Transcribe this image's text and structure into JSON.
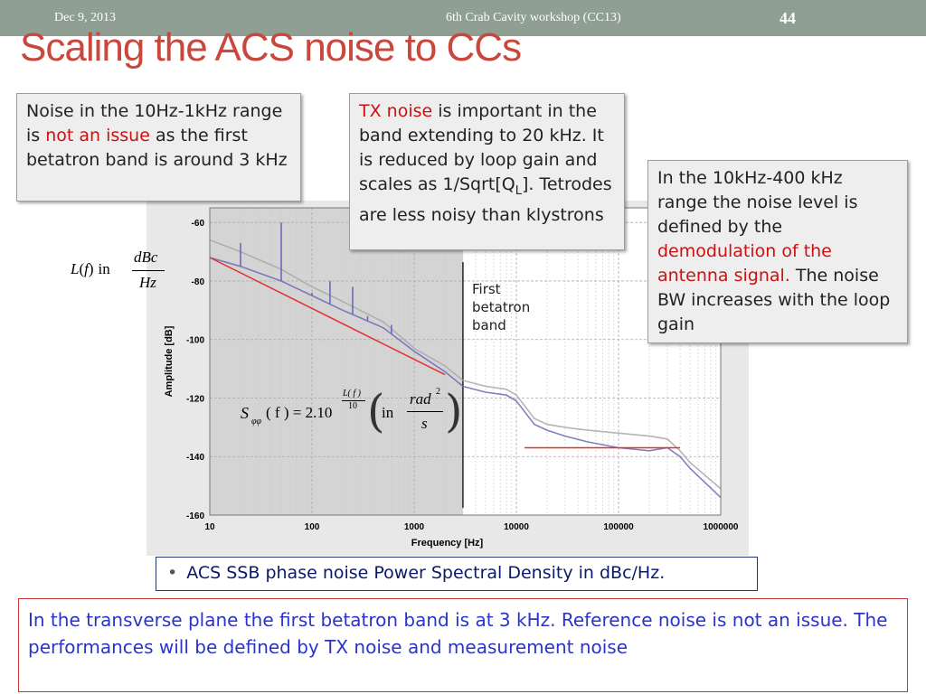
{
  "header": {
    "date": "Dec 9, 2013",
    "event": "6th Crab Cavity workshop (CC13)",
    "slide_number": "44"
  },
  "title": "Scaling the ACS noise to CCs",
  "boxes": {
    "left": {
      "t1": "Noise in the 10Hz-1kHz range is ",
      "highlight": "not an issue",
      "t2": " as the first betatron band is around 3 kHz"
    },
    "middle": {
      "highlight": "TX noise",
      "t1": " is important in the band extending to 20 kHz. It is reduced by loop gain and scales as 1/Sqrt[Q",
      "sub": "L",
      "t2": "]. Tetrodes are less noisy than klystrons"
    },
    "right": {
      "t1": "In the 10kHz-400 kHz range the noise level is defined by the ",
      "highlight": "demodulation of the antenna signal.",
      "t2": " The noise BW increases with the loop gain"
    }
  },
  "formula1": {
    "L": "L",
    "paren_open": "(",
    "f": "f",
    "paren_close": ")",
    "in": "in",
    "num": "dBc",
    "den": "Hz"
  },
  "formula2": {
    "S": "S",
    "sub": "φφ",
    "args": "( f ) = 2.10",
    "exp_num": "L( f )",
    "exp_den": "10",
    "in": "in",
    "num": "rad",
    "num_sup": "2",
    "den": "s"
  },
  "plot_annotation": [
    "First",
    "betatron",
    "band"
  ],
  "caption": {
    "bullet": "•",
    "text": "ACS SSB phase noise Power Spectral Density in dBc/Hz."
  },
  "bottom_text": "In the transverse plane the first betatron band is at 3 kHz. Reference noise is not an issue. The performances will be defined by TX noise and measurement noise",
  "chart_data": {
    "type": "line",
    "xlabel": "Frequency [Hz]",
    "ylabel": "Amplitude [dB]",
    "x_scale": "log",
    "xlim": [
      10,
      1000000
    ],
    "ylim": [
      -160,
      -55
    ],
    "x_ticks": [
      "10",
      "100",
      "1000",
      "10000",
      "100000",
      "1000000"
    ],
    "y_ticks": [
      "-60",
      "-80",
      "-100",
      "-120",
      "-140",
      "-160"
    ],
    "grid": true,
    "shaded_region_x": [
      10,
      3000
    ],
    "betatron_band_x": 3000,
    "series": [
      {
        "color": "#a8a8a8",
        "x": [
          10,
          20,
          50,
          100,
          200,
          500,
          1000,
          2000,
          3000,
          5000,
          8000,
          10000,
          15000,
          20000,
          30000,
          50000,
          100000,
          200000,
          300000,
          400000,
          500000,
          1000000
        ],
        "y": [
          -66,
          -70,
          -76,
          -82,
          -87,
          -94,
          -103,
          -109,
          -114,
          -116,
          -117,
          -119,
          -127,
          -129,
          -130,
          -131,
          -132,
          -133,
          -134,
          -138,
          -142,
          -151
        ]
      },
      {
        "color": "#6a6ab8",
        "x": [
          10,
          20,
          50,
          100,
          200,
          500,
          1000,
          2000,
          3000,
          5000,
          8000,
          10000,
          15000,
          20000,
          30000,
          50000,
          100000,
          200000,
          300000,
          400000,
          500000,
          1000000
        ],
        "y": [
          -72,
          -75,
          -80,
          -85,
          -90,
          -96,
          -104,
          -111,
          -116,
          -118,
          -119,
          -121,
          -129,
          -131,
          -133,
          -135,
          -137,
          -138,
          -137,
          -140,
          -144,
          -154
        ]
      },
      {
        "color": "#e33030",
        "x": [
          10,
          2000
        ],
        "y": [
          -72,
          -112
        ]
      },
      {
        "color": "#e33030",
        "x": [
          12000,
          400000
        ],
        "y": [
          -137,
          -137
        ]
      }
    ],
    "spikes": [
      {
        "x": 50,
        "y": -60
      },
      {
        "x": 150,
        "y": -80
      },
      {
        "x": 250,
        "y": -82
      },
      {
        "x": 100,
        "y": -84
      },
      {
        "x": 350,
        "y": -92
      },
      {
        "x": 600,
        "y": -95
      },
      {
        "x": 20,
        "y": -67
      }
    ]
  }
}
